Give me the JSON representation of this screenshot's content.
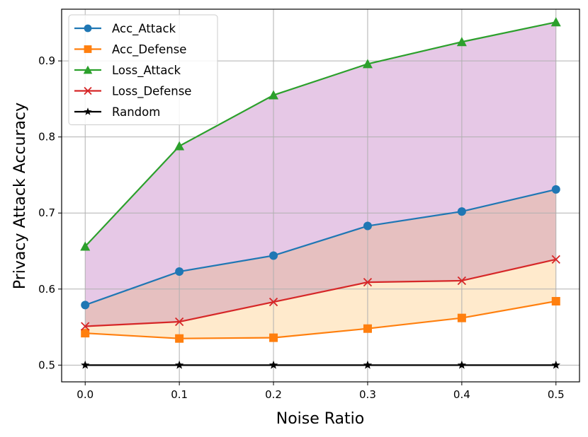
{
  "chart_data": {
    "type": "line",
    "title": "",
    "xlabel": "Noise Ratio",
    "ylabel": "Privacy Attack Accuracy",
    "x": [
      0.0,
      0.1,
      0.2,
      0.3,
      0.4,
      0.5
    ],
    "xticks": [
      "0.0",
      "0.1",
      "0.2",
      "0.3",
      "0.4",
      "0.5"
    ],
    "yticks": [
      "0.5",
      "0.6",
      "0.7",
      "0.8",
      "0.9"
    ],
    "xlim": [
      -0.025,
      0.525
    ],
    "ylim": [
      0.478,
      0.968
    ],
    "grid": true,
    "legend_position": "upper-left",
    "series": [
      {
        "name": "Acc_Attack",
        "color": "#1f77b4",
        "marker": "circle",
        "values": [
          0.579,
          0.623,
          0.644,
          0.683,
          0.702,
          0.731
        ]
      },
      {
        "name": "Acc_Defense",
        "color": "#ff7f0e",
        "marker": "square",
        "values": [
          0.542,
          0.535,
          0.536,
          0.548,
          0.562,
          0.584
        ]
      },
      {
        "name": "Loss_Attack",
        "color": "#2ca02c",
        "marker": "triangle",
        "values": [
          0.656,
          0.788,
          0.855,
          0.896,
          0.925,
          0.951
        ]
      },
      {
        "name": "Loss_Defense",
        "color": "#d62728",
        "marker": "x",
        "values": [
          0.551,
          0.557,
          0.583,
          0.609,
          0.611,
          0.639
        ]
      },
      {
        "name": "Random",
        "color": "#000000",
        "marker": "star",
        "values": [
          0.5,
          0.5,
          0.5,
          0.5,
          0.5,
          0.5
        ]
      }
    ],
    "fills": [
      {
        "between": [
          "Acc_Attack",
          "Loss_Attack"
        ],
        "color": "#e6c8e6"
      },
      {
        "between": [
          "Loss_Defense",
          "Acc_Attack"
        ],
        "color": "#e6c0c0"
      },
      {
        "between": [
          "Acc_Defense",
          "Loss_Defense"
        ],
        "color": "#ffeacc"
      }
    ]
  }
}
